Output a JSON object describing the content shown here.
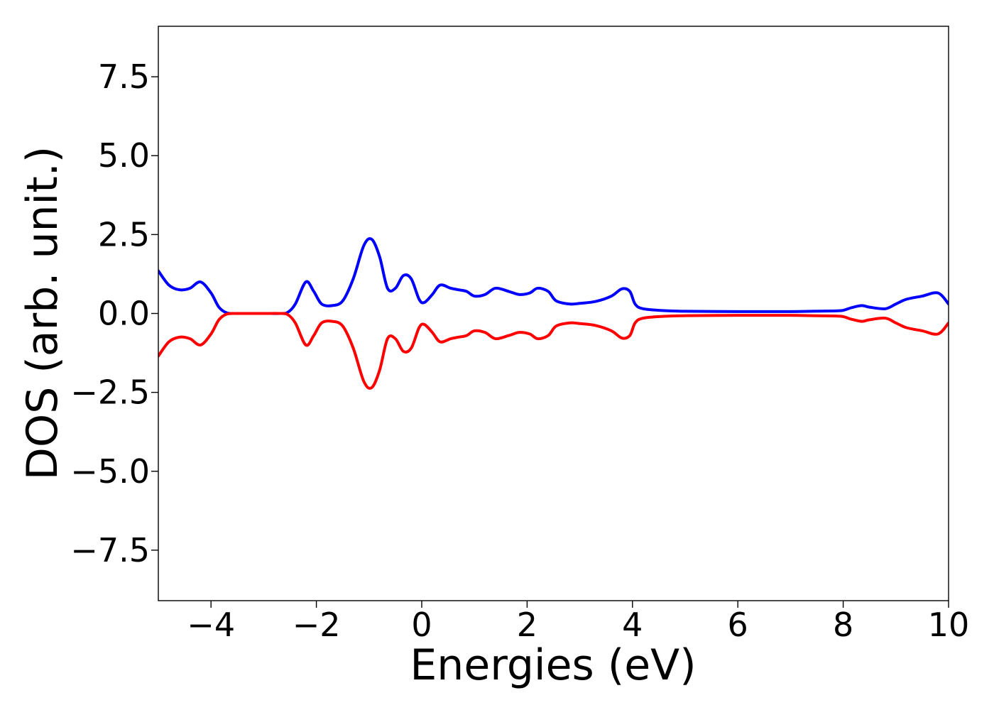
{
  "chart_data": {
    "type": "line",
    "title": "",
    "xlabel": "Energies (eV)",
    "ylabel": "DOS (arb. unit.)",
    "xlim": [
      -5,
      10
    ],
    "ylim": [
      -9.1,
      9.1
    ],
    "grid": false,
    "legend": "none",
    "xticks": [
      {
        "value": -4,
        "label": "−4"
      },
      {
        "value": -2,
        "label": "−2"
      },
      {
        "value": 0,
        "label": "0"
      },
      {
        "value": 2,
        "label": "2"
      },
      {
        "value": 4,
        "label": "4"
      },
      {
        "value": 6,
        "label": "6"
      },
      {
        "value": 8,
        "label": "8"
      },
      {
        "value": 10,
        "label": "10"
      }
    ],
    "yticks": [
      {
        "value": -7.5,
        "label": "−7.5"
      },
      {
        "value": -5.0,
        "label": "−5.0"
      },
      {
        "value": -2.5,
        "label": "−2.5"
      },
      {
        "value": 0.0,
        "label": "0.0"
      },
      {
        "value": 2.5,
        "label": "2.5"
      },
      {
        "value": 5.0,
        "label": "5.0"
      },
      {
        "value": 7.5,
        "label": "7.5"
      }
    ],
    "series": [
      {
        "color": "#0000ff",
        "x": [
          -5.0,
          -4.8,
          -4.6,
          -4.4,
          -4.2,
          -4.0,
          -3.85,
          -3.7,
          -3.5,
          -3.0,
          -2.7,
          -2.55,
          -2.4,
          -2.2,
          -2.05,
          -1.9,
          -1.7,
          -1.5,
          -1.3,
          -1.1,
          -0.95,
          -0.8,
          -0.65,
          -0.5,
          -0.35,
          -0.2,
          -0.05,
          0.05,
          0.2,
          0.35,
          0.55,
          0.7,
          0.85,
          1.0,
          1.2,
          1.4,
          1.65,
          1.85,
          2.05,
          2.2,
          2.4,
          2.55,
          2.8,
          3.0,
          3.3,
          3.6,
          3.8,
          3.95,
          4.05,
          4.2,
          4.6,
          5.0,
          6.0,
          7.0,
          7.8,
          8.0,
          8.15,
          8.35,
          8.5,
          8.8,
          9.0,
          9.2,
          9.5,
          9.8,
          10.0
        ],
        "y": [
          1.35,
          0.9,
          0.75,
          0.8,
          1.0,
          0.65,
          0.2,
          0.02,
          0.0,
          0.0,
          0.0,
          0.03,
          0.3,
          1.0,
          0.7,
          0.3,
          0.25,
          0.4,
          1.1,
          2.15,
          2.35,
          1.8,
          0.8,
          0.8,
          1.2,
          1.1,
          0.45,
          0.35,
          0.6,
          0.9,
          0.8,
          0.75,
          0.7,
          0.55,
          0.6,
          0.8,
          0.7,
          0.6,
          0.65,
          0.8,
          0.7,
          0.4,
          0.3,
          0.32,
          0.38,
          0.55,
          0.78,
          0.7,
          0.3,
          0.15,
          0.09,
          0.07,
          0.06,
          0.06,
          0.08,
          0.1,
          0.18,
          0.25,
          0.2,
          0.15,
          0.3,
          0.45,
          0.55,
          0.65,
          0.3
        ]
      },
      {
        "color": "#ff0000",
        "x": [
          -5.0,
          -4.8,
          -4.6,
          -4.4,
          -4.2,
          -4.0,
          -3.85,
          -3.7,
          -3.5,
          -3.0,
          -2.7,
          -2.55,
          -2.4,
          -2.2,
          -2.05,
          -1.9,
          -1.7,
          -1.5,
          -1.3,
          -1.1,
          -0.95,
          -0.8,
          -0.65,
          -0.5,
          -0.35,
          -0.2,
          -0.05,
          0.05,
          0.2,
          0.35,
          0.55,
          0.7,
          0.85,
          1.0,
          1.2,
          1.4,
          1.65,
          1.85,
          2.05,
          2.2,
          2.4,
          2.55,
          2.8,
          3.0,
          3.3,
          3.6,
          3.8,
          3.95,
          4.05,
          4.2,
          4.6,
          5.0,
          6.0,
          7.0,
          7.8,
          8.0,
          8.15,
          8.35,
          8.5,
          8.8,
          9.0,
          9.2,
          9.5,
          9.8,
          10.0
        ],
        "y": [
          -1.35,
          -0.9,
          -0.75,
          -0.8,
          -1.0,
          -0.65,
          -0.2,
          -0.02,
          0.0,
          0.0,
          0.0,
          -0.03,
          -0.3,
          -1.0,
          -0.7,
          -0.3,
          -0.25,
          -0.4,
          -1.1,
          -2.15,
          -2.35,
          -1.8,
          -0.8,
          -0.8,
          -1.2,
          -1.1,
          -0.45,
          -0.35,
          -0.6,
          -0.9,
          -0.8,
          -0.75,
          -0.7,
          -0.55,
          -0.6,
          -0.8,
          -0.7,
          -0.6,
          -0.65,
          -0.8,
          -0.7,
          -0.4,
          -0.3,
          -0.32,
          -0.38,
          -0.55,
          -0.78,
          -0.7,
          -0.3,
          -0.15,
          -0.09,
          -0.07,
          -0.06,
          -0.06,
          -0.08,
          -0.1,
          -0.18,
          -0.25,
          -0.2,
          -0.15,
          -0.3,
          -0.45,
          -0.55,
          -0.65,
          -0.3
        ]
      }
    ]
  }
}
